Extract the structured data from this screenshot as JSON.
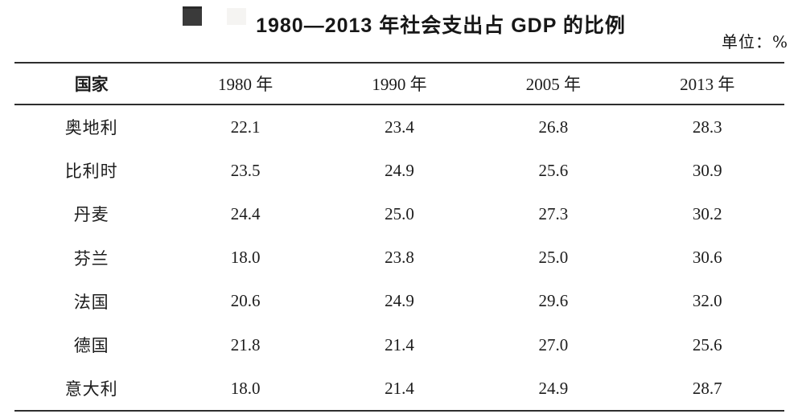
{
  "header": {
    "title": "1980—2013 年社会支出占 GDP 的比例",
    "unit_label": "单位：%"
  },
  "colors": {
    "text": "#1c1c1c",
    "rule": "#2e2e2e",
    "bullet": "#3a3a3a",
    "bullet-ghost": "#f5f4f2"
  },
  "table": {
    "columns": [
      "国家",
      "1980 年",
      "1990 年",
      "2005 年",
      "2013 年"
    ],
    "rows": [
      {
        "country": "奥地利",
        "values": [
          "22.1",
          "23.4",
          "26.8",
          "28.3"
        ]
      },
      {
        "country": "比利时",
        "values": [
          "23.5",
          "24.9",
          "25.6",
          "30.9"
        ]
      },
      {
        "country": "丹麦",
        "values": [
          "24.4",
          "25.0",
          "27.3",
          "30.2"
        ]
      },
      {
        "country": "芬兰",
        "values": [
          "18.0",
          "23.8",
          "25.0",
          "30.6"
        ]
      },
      {
        "country": "法国",
        "values": [
          "20.6",
          "24.9",
          "29.6",
          "32.0"
        ]
      },
      {
        "country": "德国",
        "values": [
          "21.8",
          "21.4",
          "27.0",
          "25.6"
        ]
      },
      {
        "country": "意大利",
        "values": [
          "18.0",
          "21.4",
          "24.9",
          "28.7"
        ]
      }
    ]
  },
  "chart_data": {
    "type": "table",
    "title": "1980—2013 年社会支出占 GDP 的比例",
    "unit": "%",
    "columns": [
      "国家",
      "1980 年",
      "1990 年",
      "2005 年",
      "2013 年"
    ],
    "rows": [
      [
        "奥地利",
        22.1,
        23.4,
        26.8,
        28.3
      ],
      [
        "比利时",
        23.5,
        24.9,
        25.6,
        30.9
      ],
      [
        "丹麦",
        24.4,
        25.0,
        27.3,
        30.2
      ],
      [
        "芬兰",
        18.0,
        23.8,
        25.0,
        30.6
      ],
      [
        "法国",
        20.6,
        24.9,
        29.6,
        32.0
      ],
      [
        "德国",
        21.8,
        21.4,
        27.0,
        25.6
      ],
      [
        "意大利",
        18.0,
        21.4,
        24.9,
        28.7
      ]
    ]
  }
}
